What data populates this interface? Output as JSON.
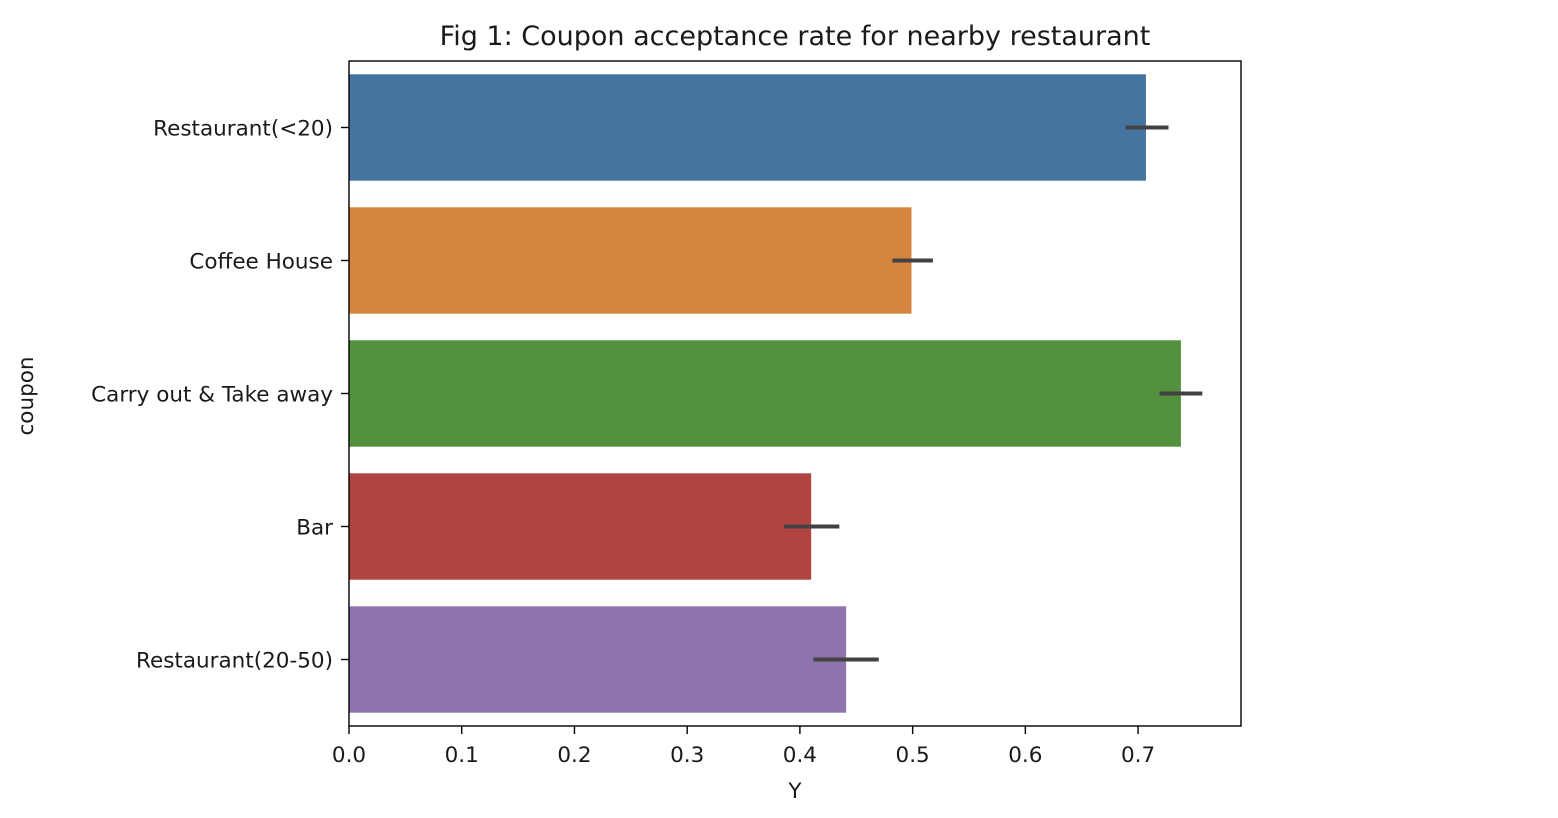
{
  "chart_data": {
    "type": "bar",
    "orientation": "horizontal",
    "title": "Fig 1: Coupon acceptance rate for nearby restaurant",
    "xlabel": "Y",
    "ylabel": "coupon",
    "xlim": [
      0.0,
      0.7913
    ],
    "xticks": [
      0.0,
      0.1,
      0.2,
      0.3,
      0.4,
      0.5,
      0.6,
      0.7
    ],
    "xtick_labels": [
      "0.0",
      "0.1",
      "0.2",
      "0.3",
      "0.4",
      "0.5",
      "0.6",
      "0.7"
    ],
    "grid": false,
    "categories": [
      "Restaurant(<20)",
      "Coffee House",
      "Carry out & Take away",
      "Bar",
      "Restaurant(20-50)"
    ],
    "values": [
      0.707,
      0.499,
      0.738,
      0.41,
      0.441
    ],
    "error_low": [
      0.689,
      0.482,
      0.719,
      0.386,
      0.412
    ],
    "error_high": [
      0.727,
      0.518,
      0.757,
      0.435,
      0.47
    ],
    "colors": [
      "#4574a0",
      "#d5853d",
      "#54913f",
      "#b04542",
      "#8e73ac"
    ],
    "error_color": "#424242"
  }
}
